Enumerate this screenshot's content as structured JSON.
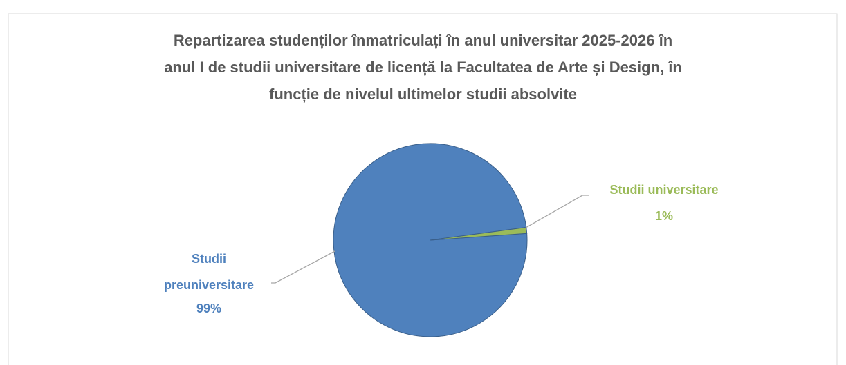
{
  "chart_data": {
    "type": "pie",
    "title": [
      "Repartizarea studenților înmatriculați în anul universitar 2025-2026 în",
      "anul I de studii universitare de licență la Facultatea de Arte și Design, în",
      "funcție de nivelul ultimelor studii absolvite"
    ],
    "categories": [
      "Studii preuniversitare",
      "Studii universitare"
    ],
    "values": [
      99,
      1
    ],
    "value_labels": [
      "99%",
      "1%"
    ],
    "colors": [
      "#4f81bd",
      "#9bbb59"
    ],
    "start_angle": 86
  }
}
